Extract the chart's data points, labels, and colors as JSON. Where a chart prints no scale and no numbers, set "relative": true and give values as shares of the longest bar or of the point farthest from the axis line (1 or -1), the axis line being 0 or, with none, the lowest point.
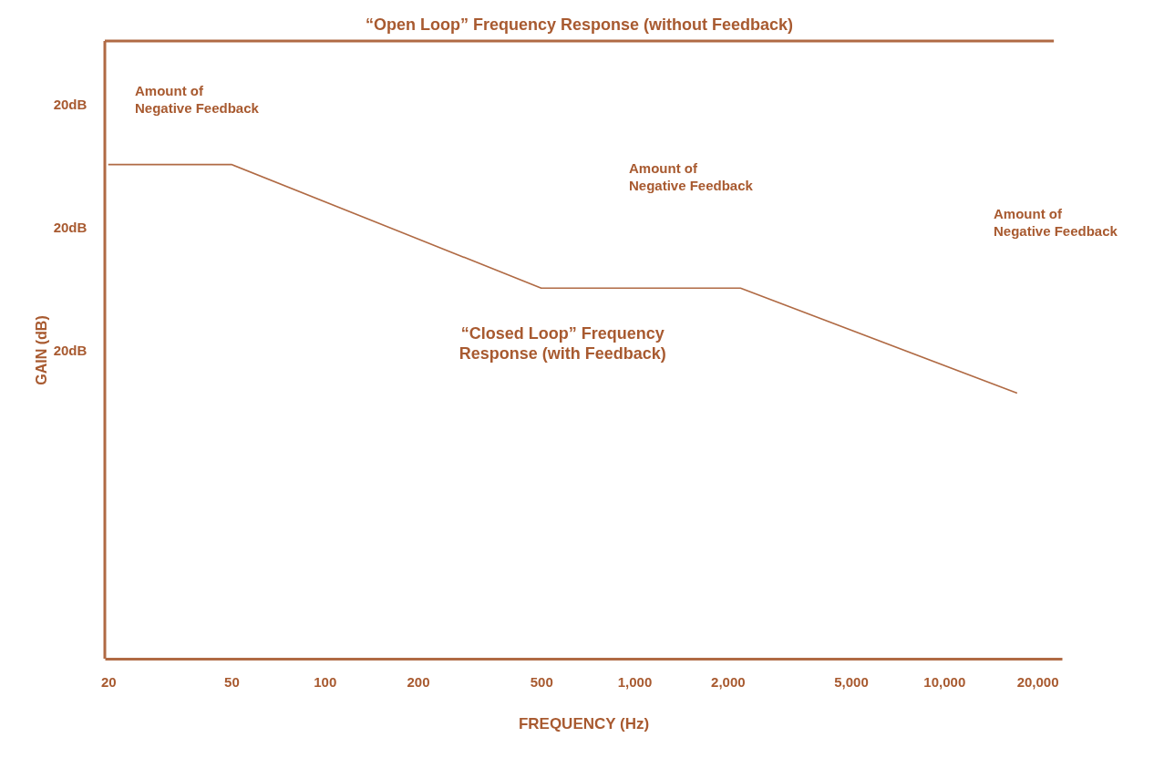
{
  "chart_data": {
    "type": "line",
    "relative": true,
    "xlabel": "FREQUENCY (Hz)",
    "ylabel": "GAIN (dB)",
    "log": "x",
    "xlim": [
      19.5,
      24000
    ],
    "xticks": [
      20,
      50,
      100,
      200,
      500,
      {
        "value": 1000,
        "label": "1,000"
      },
      {
        "value": 2000,
        "label": "2,000"
      },
      {
        "value": 5000,
        "label": "5,000"
      },
      {
        "value": 10000,
        "label": "10,000"
      },
      {
        "value": 20000,
        "label": "20,000"
      }
    ],
    "ref_lines": [
      {
        "axis": "x",
        "value": 19.5,
        "color": "#b06a44"
      }
    ],
    "grid": false,
    "legend": false,
    "marker": "none",
    "line_style": "solid",
    "series": [
      {
        "name": "“Open Loop” Frequency Response (without Feedback)",
        "color": "#b06a44",
        "x": [
          19.5,
          22600
        ],
        "values": [
          1,
          1
        ]
      },
      {
        "name": "“Closed Loop” Frequency Response (with Feedback)",
        "color": "#b06a44",
        "x": [
          20,
          50,
          500,
          2200,
          17200
        ],
        "values": [
          0.8,
          0.8,
          0.6,
          0.6,
          0.43
        ]
      }
    ],
    "annotations": [
      "Amount of Negative Feedback",
      "Amount of Negative Feedback",
      "Amount of Negative Feedback",
      "20dB",
      "20dB",
      "20dB"
    ]
  }
}
